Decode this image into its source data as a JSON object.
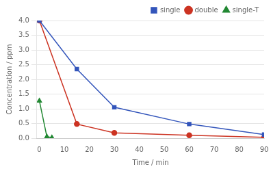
{
  "chart_data": {
    "type": "line",
    "xlabel": "Time / min",
    "ylabel": "Concentration / ppm",
    "series": [
      {
        "name": "single",
        "color": "#3355bb",
        "marker": "square",
        "x": [
          0,
          15,
          30,
          60,
          90
        ],
        "values": [
          4.0,
          2.35,
          1.05,
          0.48,
          0.12
        ]
      },
      {
        "name": "double",
        "color": "#cc3322",
        "marker": "circle",
        "x": [
          0,
          15,
          30,
          60,
          90
        ],
        "values": [
          4.0,
          0.48,
          0.18,
          0.1,
          0.03
        ]
      },
      {
        "name": "single-T",
        "color": "#228833",
        "marker": "triangle",
        "x": [
          0,
          3,
          5
        ],
        "values": [
          1.27,
          0.05,
          0.02
        ]
      }
    ],
    "xlim": [
      -1,
      90
    ],
    "ylim": [
      0,
      4.0
    ],
    "xticks": [
      0,
      10,
      20,
      30,
      40,
      50,
      60,
      70,
      80,
      90
    ],
    "yticks": [
      {
        "value": 0,
        "label": "0.0"
      },
      0.5,
      {
        "value": 1,
        "label": "1.0"
      },
      1.5,
      {
        "value": 2,
        "label": "2.0"
      },
      2.5,
      {
        "value": 3,
        "label": "3.0"
      },
      3.5,
      {
        "value": 4,
        "label": "4.0"
      }
    ],
    "grid": "y",
    "legend": "upper right"
  }
}
